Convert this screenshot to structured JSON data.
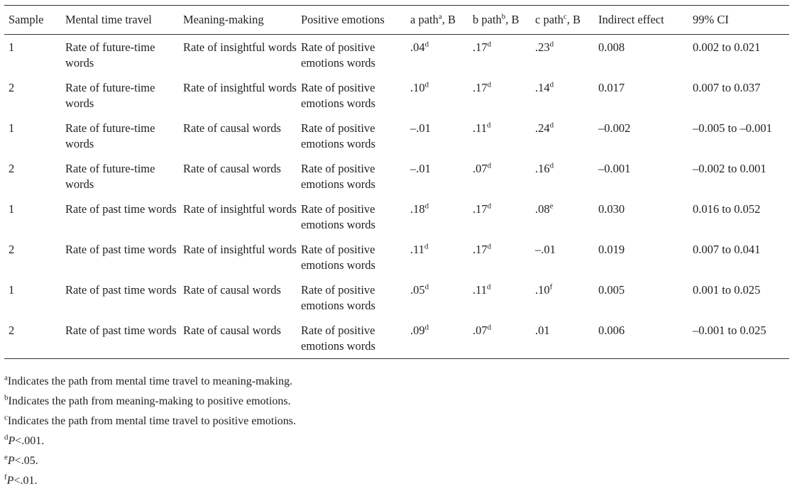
{
  "headers": [
    {
      "text": "Sample"
    },
    {
      "text": "Mental time travel"
    },
    {
      "text": "Meaning-making"
    },
    {
      "text": "Positive emotions"
    },
    {
      "text": "a path",
      "sup": "a",
      "suffix": ", B"
    },
    {
      "text": "b path",
      "sup": "b",
      "suffix": ", B"
    },
    {
      "text": "c path",
      "sup": "c",
      "suffix": ", B"
    },
    {
      "text": "Indirect effect"
    },
    {
      "text": "99% CI"
    }
  ],
  "rows": [
    {
      "sample": "1",
      "mtt": "Rate of future-time words",
      "mm": "Rate of insightful words",
      "pe": "Rate of positive emotions words",
      "a": {
        "v": ".04",
        "s": "d"
      },
      "b": {
        "v": ".17",
        "s": "d"
      },
      "c": {
        "v": ".23",
        "s": "d"
      },
      "ie": "0.008",
      "ci": "0.002 to 0.021"
    },
    {
      "sample": "2",
      "mtt": "Rate of future-time words",
      "mm": "Rate of insightful words",
      "pe": "Rate of positive emotions words",
      "a": {
        "v": ".10",
        "s": "d"
      },
      "b": {
        "v": ".17",
        "s": "d"
      },
      "c": {
        "v": ".14",
        "s": "d"
      },
      "ie": "0.017",
      "ci": "0.007 to 0.037"
    },
    {
      "sample": "1",
      "mtt": "Rate of future-time words",
      "mm": "Rate of causal words",
      "pe": "Rate of positive emotions words",
      "a": {
        "v": "–.01",
        "s": ""
      },
      "b": {
        "v": ".11",
        "s": "d"
      },
      "c": {
        "v": ".24",
        "s": "d"
      },
      "ie": "–0.002",
      "ci": "–0.005 to –0.001"
    },
    {
      "sample": "2",
      "mtt": "Rate of future-time words",
      "mm": "Rate of causal words",
      "pe": "Rate of positive emotions words",
      "a": {
        "v": "–.01",
        "s": ""
      },
      "b": {
        "v": ".07",
        "s": "d"
      },
      "c": {
        "v": ".16",
        "s": "d"
      },
      "ie": "–0.001",
      "ci": "–0.002 to 0.001"
    },
    {
      "sample": "1",
      "mtt": "Rate of past time words",
      "mm": "Rate of insightful words",
      "pe": "Rate of positive emotions words",
      "a": {
        "v": ".18",
        "s": "d"
      },
      "b": {
        "v": ".17",
        "s": "d"
      },
      "c": {
        "v": ".08",
        "s": "e"
      },
      "ie": "0.030",
      "ci": "0.016 to 0.052"
    },
    {
      "sample": "2",
      "mtt": "Rate of past time words",
      "mm": "Rate of insightful words",
      "pe": "Rate of positive emotions words",
      "a": {
        "v": ".11",
        "s": "d"
      },
      "b": {
        "v": ".17",
        "s": "d"
      },
      "c": {
        "v": "–.01",
        "s": ""
      },
      "ie": "0.019",
      "ci": "0.007 to 0.041"
    },
    {
      "sample": "1",
      "mtt": "Rate of past time words",
      "mm": "Rate of causal words",
      "pe": "Rate of positive emotions words",
      "a": {
        "v": ".05",
        "s": "d"
      },
      "b": {
        "v": ".11",
        "s": "d"
      },
      "c": {
        "v": ".10",
        "s": "f"
      },
      "ie": "0.005",
      "ci": "0.001 to 0.025"
    },
    {
      "sample": "2",
      "mtt": "Rate of past time words",
      "mm": "Rate of causal words",
      "pe": "Rate of positive emotions words",
      "a": {
        "v": ".09",
        "s": "d"
      },
      "b": {
        "v": ".07",
        "s": "d"
      },
      "c": {
        "v": ".01",
        "s": ""
      },
      "ie": "0.006",
      "ci": "–0.001 to 0.025"
    }
  ],
  "footnotes": [
    {
      "mark": "a",
      "text": "Indicates the path from mental time travel to meaning-making.",
      "italic": false
    },
    {
      "mark": "b",
      "text": "Indicates the path from meaning-making to positive emotions.",
      "italic": false
    },
    {
      "mark": "c",
      "text": "Indicates the path from mental time travel to positive emotions.",
      "italic": false
    },
    {
      "mark": "d",
      "p": "P",
      "text": "<.001.",
      "italic": true
    },
    {
      "mark": "e",
      "p": "P",
      "text": "<.05.",
      "italic": true
    },
    {
      "mark": "f",
      "p": "P",
      "text": "<.01.",
      "italic": true
    }
  ]
}
